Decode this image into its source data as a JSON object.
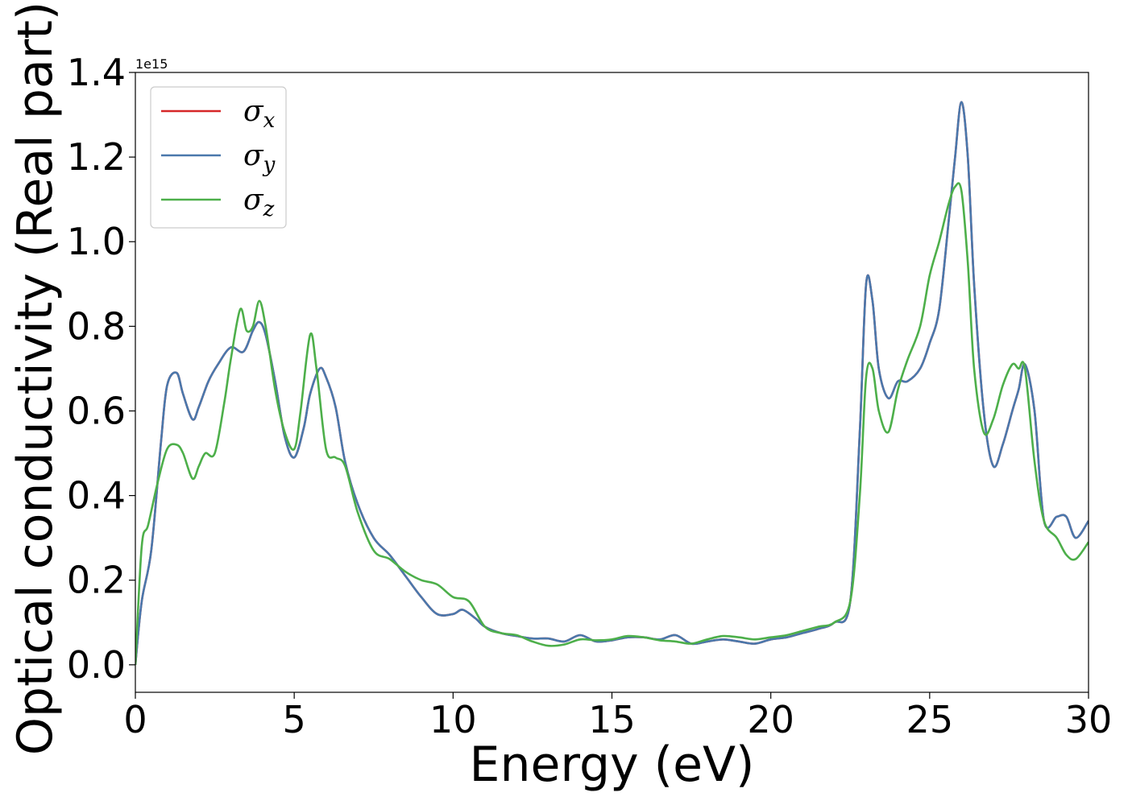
{
  "chart_data": {
    "type": "line",
    "xlabel": "Energy (eV)",
    "ylabel": "Optical conductivity (Real part)",
    "y_multiplier": "1e15",
    "xlim": [
      0,
      30
    ],
    "ylim": [
      -0.065,
      1.4
    ],
    "x_ticks": [
      0,
      5,
      10,
      15,
      20,
      25,
      30
    ],
    "x_tick_labels": [
      "0",
      "5",
      "10",
      "15",
      "20",
      "25",
      "30"
    ],
    "y_ticks": [
      0.0,
      0.2,
      0.4,
      0.6,
      0.8,
      1.0,
      1.2,
      1.4
    ],
    "y_tick_labels": [
      "0.0",
      "0.2",
      "0.4",
      "0.6",
      "0.8",
      "1.0",
      "1.2",
      "1.4"
    ],
    "grid": false,
    "legend_position": "upper-left",
    "series": [
      {
        "name": "σx",
        "symbol": "σ",
        "sub": "x",
        "color": "#d62728",
        "x": [
          0,
          0.2,
          0.5,
          0.8,
          1.0,
          1.3,
          1.5,
          1.8,
          2.0,
          2.3,
          2.6,
          3.0,
          3.4,
          3.7,
          3.9,
          4.1,
          4.4,
          4.7,
          5.0,
          5.3,
          5.5,
          5.8,
          6.0,
          6.3,
          6.6,
          7.0,
          7.5,
          8.0,
          8.5,
          9.0,
          9.5,
          10.0,
          10.3,
          10.7,
          11.0,
          11.5,
          12.0,
          12.5,
          13.0,
          13.5,
          14.0,
          14.5,
          15.0,
          15.5,
          16.0,
          16.5,
          17.0,
          17.5,
          18.0,
          18.5,
          19.0,
          19.5,
          20.0,
          20.5,
          21.0,
          21.5,
          22.0,
          22.5,
          22.8,
          23.0,
          23.2,
          23.4,
          23.7,
          24.0,
          24.3,
          24.7,
          25.0,
          25.3,
          25.6,
          25.8,
          26.0,
          26.2,
          26.4,
          26.7,
          27.0,
          27.3,
          27.6,
          27.8,
          28.0,
          28.3,
          28.6,
          29.0,
          29.3,
          29.6,
          30.0
        ],
        "y": [
          0.0,
          0.15,
          0.27,
          0.52,
          0.66,
          0.69,
          0.64,
          0.58,
          0.61,
          0.67,
          0.71,
          0.75,
          0.74,
          0.79,
          0.81,
          0.78,
          0.67,
          0.54,
          0.49,
          0.56,
          0.64,
          0.7,
          0.68,
          0.61,
          0.48,
          0.38,
          0.3,
          0.26,
          0.21,
          0.16,
          0.12,
          0.12,
          0.13,
          0.11,
          0.09,
          0.075,
          0.068,
          0.062,
          0.062,
          0.055,
          0.07,
          0.055,
          0.058,
          0.065,
          0.065,
          0.06,
          0.07,
          0.05,
          0.055,
          0.06,
          0.055,
          0.05,
          0.06,
          0.065,
          0.075,
          0.085,
          0.1,
          0.15,
          0.55,
          0.9,
          0.86,
          0.7,
          0.63,
          0.67,
          0.67,
          0.7,
          0.76,
          0.84,
          1.05,
          1.2,
          1.33,
          1.2,
          0.9,
          0.6,
          0.47,
          0.52,
          0.6,
          0.65,
          0.71,
          0.6,
          0.34,
          0.35,
          0.35,
          0.3,
          0.34
        ]
      },
      {
        "name": "σy",
        "symbol": "σ",
        "sub": "y",
        "color": "#4a78ac",
        "x": [
          0,
          0.2,
          0.5,
          0.8,
          1.0,
          1.3,
          1.5,
          1.8,
          2.0,
          2.3,
          2.6,
          3.0,
          3.4,
          3.7,
          3.9,
          4.1,
          4.4,
          4.7,
          5.0,
          5.3,
          5.5,
          5.8,
          6.0,
          6.3,
          6.6,
          7.0,
          7.5,
          8.0,
          8.5,
          9.0,
          9.5,
          10.0,
          10.3,
          10.7,
          11.0,
          11.5,
          12.0,
          12.5,
          13.0,
          13.5,
          14.0,
          14.5,
          15.0,
          15.5,
          16.0,
          16.5,
          17.0,
          17.5,
          18.0,
          18.5,
          19.0,
          19.5,
          20.0,
          20.5,
          21.0,
          21.5,
          22.0,
          22.5,
          22.8,
          23.0,
          23.2,
          23.4,
          23.7,
          24.0,
          24.3,
          24.7,
          25.0,
          25.3,
          25.6,
          25.8,
          26.0,
          26.2,
          26.4,
          26.7,
          27.0,
          27.3,
          27.6,
          27.8,
          28.0,
          28.3,
          28.6,
          29.0,
          29.3,
          29.6,
          30.0
        ],
        "y": [
          0.0,
          0.15,
          0.27,
          0.52,
          0.66,
          0.69,
          0.64,
          0.58,
          0.61,
          0.67,
          0.71,
          0.75,
          0.74,
          0.79,
          0.81,
          0.78,
          0.67,
          0.54,
          0.49,
          0.56,
          0.64,
          0.7,
          0.68,
          0.61,
          0.48,
          0.38,
          0.3,
          0.26,
          0.21,
          0.16,
          0.12,
          0.12,
          0.13,
          0.11,
          0.09,
          0.075,
          0.068,
          0.062,
          0.062,
          0.055,
          0.07,
          0.055,
          0.058,
          0.065,
          0.065,
          0.06,
          0.07,
          0.05,
          0.055,
          0.06,
          0.055,
          0.05,
          0.06,
          0.065,
          0.075,
          0.085,
          0.1,
          0.15,
          0.55,
          0.9,
          0.86,
          0.7,
          0.63,
          0.67,
          0.67,
          0.7,
          0.76,
          0.84,
          1.05,
          1.2,
          1.33,
          1.2,
          0.9,
          0.6,
          0.47,
          0.52,
          0.6,
          0.65,
          0.71,
          0.6,
          0.34,
          0.35,
          0.35,
          0.3,
          0.34
        ]
      },
      {
        "name": "σz",
        "symbol": "σ",
        "sub": "z",
        "color": "#4daf4a",
        "x": [
          0,
          0.2,
          0.4,
          0.7,
          1.0,
          1.3,
          1.5,
          1.8,
          2.0,
          2.2,
          2.5,
          2.8,
          3.0,
          3.3,
          3.5,
          3.7,
          3.9,
          4.1,
          4.4,
          4.7,
          5.0,
          5.2,
          5.5,
          5.7,
          6.0,
          6.3,
          6.6,
          7.0,
          7.5,
          8.0,
          8.5,
          9.0,
          9.5,
          10.0,
          10.5,
          11.0,
          11.5,
          12.0,
          12.5,
          13.0,
          13.5,
          14.0,
          14.5,
          15.0,
          15.5,
          16.0,
          16.5,
          17.0,
          17.5,
          18.0,
          18.5,
          19.0,
          19.5,
          20.0,
          20.5,
          21.0,
          21.5,
          22.0,
          22.5,
          22.8,
          23.0,
          23.2,
          23.4,
          23.7,
          24.0,
          24.3,
          24.7,
          25.0,
          25.3,
          25.6,
          25.8,
          26.0,
          26.2,
          26.4,
          26.7,
          27.0,
          27.3,
          27.6,
          27.8,
          28.0,
          28.3,
          28.6,
          29.0,
          29.3,
          29.6,
          30.0
        ],
        "y": [
          0.0,
          0.28,
          0.33,
          0.43,
          0.51,
          0.52,
          0.5,
          0.44,
          0.47,
          0.5,
          0.5,
          0.62,
          0.72,
          0.84,
          0.79,
          0.8,
          0.86,
          0.8,
          0.65,
          0.55,
          0.51,
          0.6,
          0.78,
          0.7,
          0.51,
          0.49,
          0.47,
          0.36,
          0.27,
          0.25,
          0.22,
          0.2,
          0.19,
          0.16,
          0.15,
          0.09,
          0.075,
          0.07,
          0.055,
          0.045,
          0.048,
          0.06,
          0.058,
          0.06,
          0.068,
          0.065,
          0.058,
          0.055,
          0.05,
          0.06,
          0.068,
          0.065,
          0.06,
          0.065,
          0.07,
          0.08,
          0.09,
          0.1,
          0.15,
          0.4,
          0.68,
          0.7,
          0.6,
          0.55,
          0.65,
          0.72,
          0.8,
          0.92,
          1.0,
          1.09,
          1.13,
          1.12,
          0.95,
          0.7,
          0.55,
          0.58,
          0.66,
          0.71,
          0.7,
          0.7,
          0.48,
          0.34,
          0.3,
          0.26,
          0.25,
          0.29
        ]
      }
    ]
  }
}
